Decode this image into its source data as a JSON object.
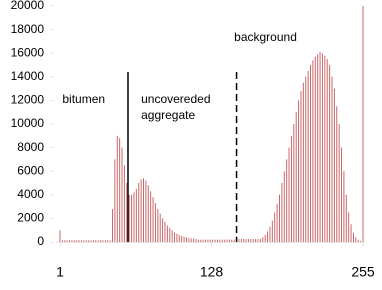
{
  "chart_data": {
    "type": "bar",
    "x": [
      1,
      3,
      5,
      7,
      9,
      11,
      13,
      15,
      17,
      19,
      21,
      23,
      25,
      27,
      29,
      31,
      33,
      35,
      37,
      39,
      41,
      43,
      45,
      47,
      49,
      51,
      53,
      55,
      57,
      59,
      61,
      63,
      65,
      67,
      69,
      71,
      73,
      75,
      77,
      79,
      81,
      83,
      85,
      87,
      89,
      91,
      93,
      95,
      97,
      99,
      101,
      103,
      105,
      107,
      109,
      111,
      113,
      115,
      117,
      119,
      121,
      123,
      125,
      127,
      129,
      131,
      133,
      135,
      137,
      139,
      141,
      143,
      145,
      147,
      149,
      151,
      153,
      155,
      157,
      159,
      161,
      163,
      165,
      167,
      169,
      171,
      173,
      175,
      177,
      179,
      181,
      183,
      185,
      187,
      189,
      191,
      193,
      195,
      197,
      199,
      201,
      203,
      205,
      207,
      209,
      211,
      213,
      215,
      217,
      219,
      221,
      223,
      225,
      227,
      229,
      231,
      233,
      235,
      237,
      239,
      241,
      243,
      245,
      247,
      249,
      251,
      253,
      255
    ],
    "values": [
      1000,
      150,
      150,
      150,
      150,
      150,
      150,
      150,
      150,
      150,
      150,
      150,
      150,
      150,
      150,
      150,
      150,
      150,
      150,
      150,
      150,
      150,
      2800,
      7000,
      9000,
      8800,
      8000,
      6500,
      5000,
      4000,
      4000,
      4200,
      4500,
      5000,
      5300,
      5400,
      5200,
      4800,
      4300,
      3800,
      3300,
      2800,
      2400,
      2000,
      1700,
      1400,
      1200,
      1000,
      800,
      700,
      600,
      500,
      450,
      400,
      350,
      300,
      300,
      250,
      200,
      200,
      200,
      200,
      200,
      200,
      200,
      200,
      200,
      200,
      200,
      200,
      200,
      200,
      200,
      200,
      500,
      250,
      250,
      250,
      250,
      250,
      250,
      250,
      250,
      250,
      250,
      400,
      600,
      900,
      1300,
      1800,
      2500,
      3200,
      4000,
      5000,
      6000,
      7000,
      8000,
      9000,
      10000,
      11000,
      12000,
      12800,
      13500,
      14000,
      14500,
      15000,
      15400,
      15700,
      15900,
      16100,
      16000,
      15800,
      15500,
      15000,
      14000,
      13000,
      11500,
      10000,
      8000,
      6000,
      4000,
      2500,
      1500,
      800,
      400,
      200,
      100,
      20000
    ],
    "color": "#c9686a",
    "xlim": [
      1,
      255
    ],
    "xticks": [
      1,
      128,
      255
    ],
    "ylim": [
      0,
      20000
    ],
    "yticks": [
      0,
      2000,
      4000,
      6000,
      8000,
      10000,
      12000,
      14000,
      16000,
      18000,
      20000
    ],
    "thresholds": [
      {
        "value": 58,
        "style": "solid"
      },
      {
        "value": 149,
        "style": "dashed"
      }
    ],
    "annotations": [
      {
        "lines": [
          "bitumen"
        ],
        "at": 3
      },
      {
        "lines": [
          "uncovereded",
          "aggregate"
        ],
        "at": 69
      },
      {
        "lines": [
          "background"
        ],
        "at": 147
      }
    ]
  }
}
